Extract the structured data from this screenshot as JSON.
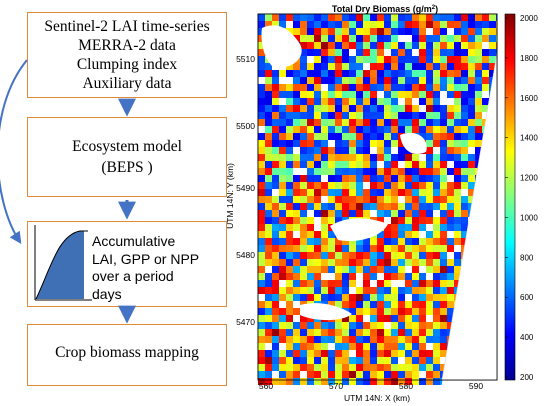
{
  "flow": {
    "inputs": [
      "Sentinel-2 LAI time-series",
      "MERRA-2 data",
      "Clumping index",
      "Auxiliary data"
    ],
    "model": [
      "Ecosystem model",
      "(BEPS )"
    ],
    "accumulation": [
      "Accumulative",
      "LAI, GPP or NPP",
      "over a period",
      "days"
    ],
    "output": "Crop biomass mapping"
  },
  "map": {
    "title_text": "Total Dry Biomass (g/m",
    "title_sup": "2",
    "title_end": ")",
    "xlabel": "UTM 14N: X (km)",
    "ylabel": "UTM 14N: Y (km)",
    "xticks": [
      "560",
      "570",
      "580",
      "590"
    ],
    "yticks": [
      "5470",
      "5480",
      "5490",
      "5500",
      "5510"
    ],
    "colorbar_ticks": [
      "200",
      "400",
      "600",
      "800",
      "1000",
      "1200",
      "1400",
      "1600",
      "1800",
      "2000"
    ],
    "colorbar_range": [
      200,
      2000
    ],
    "colormap": "jet"
  },
  "colors": {
    "box_border": "#e08a3c",
    "arrow": "#4472c4",
    "curve_fill": "#3f6fb5"
  }
}
